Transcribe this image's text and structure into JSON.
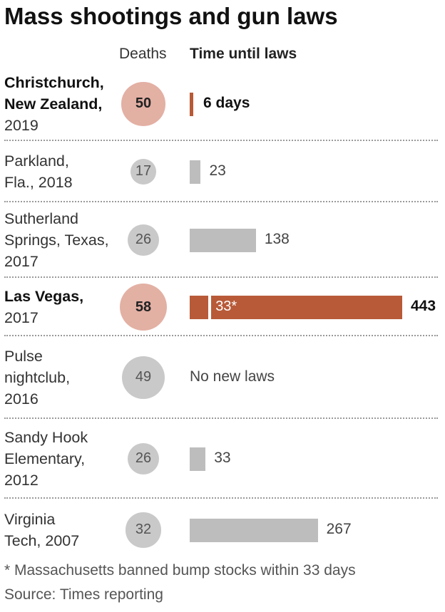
{
  "title": "Mass shootings and gun laws",
  "headers": {
    "deaths": "Deaths",
    "time": "Time until laws"
  },
  "colors": {
    "highlight_bar": "#b85a38",
    "highlight_circle": "#e3b0a4",
    "gray_bar": "#bdbdbd",
    "gray_circle": "#c9c9c9"
  },
  "chart_data": {
    "type": "bar",
    "title": "Mass shootings and gun laws",
    "columns": [
      "Deaths",
      "Time until laws"
    ],
    "unit": "days",
    "xlim": [
      0,
      443
    ],
    "rows": [
      {
        "event": "Christchurch, New Zealand, 2019",
        "name": "Christchurch,\nNew Zealand,",
        "year": "2019",
        "deaths": 50,
        "days": 6,
        "days_label": "6 days",
        "highlight": true
      },
      {
        "event": "Parkland, Fla., 2018",
        "name": "Parkland,\nFla., 2018",
        "year": "",
        "deaths": 17,
        "days": 23,
        "days_label": "23",
        "highlight": false
      },
      {
        "event": "Sutherland Springs, Texas, 2017",
        "name": "Sutherland\nSprings, Texas,\n2017",
        "year": "",
        "deaths": 26,
        "days": 138,
        "days_label": "138",
        "highlight": false
      },
      {
        "event": "Las Vegas, 2017",
        "name": "Las Vegas,",
        "year": "2017",
        "deaths": 58,
        "days": 443,
        "days_label": "443",
        "partial_days": 33,
        "partial_label": "33*",
        "highlight": true
      },
      {
        "event": "Pulse nightclub, 2016",
        "name": "Pulse\nnightclub,\n2016",
        "year": "",
        "deaths": 49,
        "days": null,
        "days_label": "No new laws",
        "highlight": false
      },
      {
        "event": "Sandy Hook Elementary, 2012",
        "name": "Sandy Hook\nElementary,\n2012",
        "year": "",
        "deaths": 26,
        "days": 33,
        "days_label": "33",
        "highlight": false
      },
      {
        "event": "Virginia Tech, 2007",
        "name": "Virginia\nTech, 2007",
        "year": "",
        "deaths": 32,
        "days": 267,
        "days_label": "267",
        "highlight": false
      }
    ]
  },
  "footnote": "* Massachusetts banned bump stocks within 33 days",
  "source": "Source: Times reporting"
}
